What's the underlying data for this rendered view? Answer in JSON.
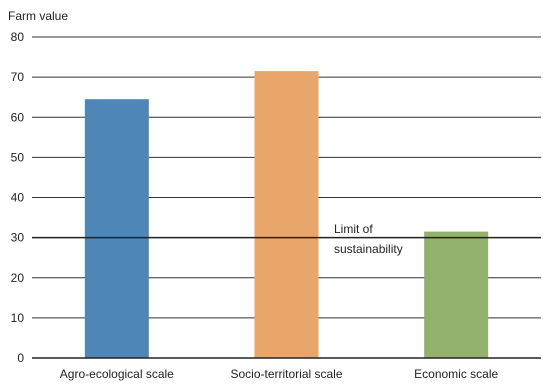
{
  "chart_data": {
    "type": "bar",
    "title": "",
    "ylabel": "Farm value",
    "xlabel": "",
    "ylim": [
      0,
      80
    ],
    "yticks": [
      0,
      10,
      20,
      30,
      40,
      50,
      60,
      70,
      80
    ],
    "grid": true,
    "categories": [
      "Agro-ecological scale",
      "Socio-territorial scale",
      "Economic scale"
    ],
    "values": [
      64.5,
      71.5,
      31.5
    ],
    "colors": [
      "#4f86b8",
      "#e8a66a",
      "#93b06c"
    ],
    "reference_line": {
      "value": 30,
      "label_line1": "Limit of",
      "label_line2": "sustainability"
    }
  }
}
